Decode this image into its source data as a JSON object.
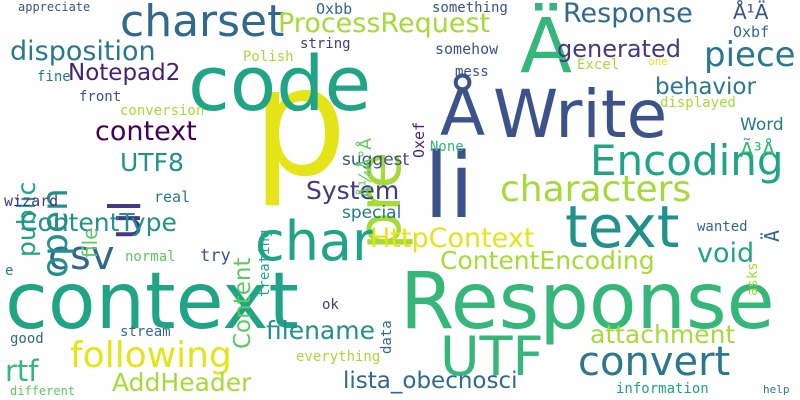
{
  "palette": {
    "yellow": "#e5e419",
    "lime": "#a5db36",
    "green": "#5ec962",
    "teal_green": "#35b779",
    "emerald": "#20a486",
    "teal": "#21918c",
    "blue_teal": "#2a788e",
    "blue": "#31688e",
    "indigo": "#3b528b",
    "violet": "#443983",
    "dark_violet": "#481f70",
    "black_violet": "#440154"
  },
  "words": [
    {
      "text": "Response",
      "color": "#35b779"
    },
    {
      "text": "context",
      "color": "#20a486"
    },
    {
      "text": "p",
      "color": "#e5e419"
    },
    {
      "text": "code",
      "color": "#20a486"
    },
    {
      "text": "Write",
      "color": "#3b528b"
    },
    {
      "text": "li",
      "color": "#3b528b"
    },
    {
      "text": "Å",
      "color": "#3b528b"
    },
    {
      "text": "Ä",
      "color": "#35b779"
    },
    {
      "text": "pre",
      "color": "#a5db36"
    },
    {
      "text": "char",
      "color": "#20a486"
    },
    {
      "text": "text",
      "color": "#21918c"
    },
    {
      "text": "UTF",
      "color": "#35b779"
    },
    {
      "text": "charset",
      "color": "#31688e"
    },
    {
      "text": "Encoding",
      "color": "#20a486"
    },
    {
      "text": "characters",
      "color": "#a5db36"
    },
    {
      "text": "following",
      "color": "#e5e419"
    },
    {
      "text": "convert",
      "color": "#2a788e"
    },
    {
      "text": "csv",
      "color": "#31688e"
    },
    {
      "text": "open",
      "color": "#21918c"
    },
    {
      "text": "ul",
      "color": "#443983"
    },
    {
      "text": "ProcessRequest",
      "color": "#a5db36"
    },
    {
      "text": "Response",
      "color": "#31688e"
    },
    {
      "text": "disposition",
      "color": "#2a788e"
    },
    {
      "text": "generated",
      "color": "#443983"
    },
    {
      "text": "piece",
      "color": "#2a788e"
    },
    {
      "text": "Notepad2",
      "color": "#481f70"
    },
    {
      "text": "context",
      "color": "#440154"
    },
    {
      "text": "behavior",
      "color": "#2a788e"
    },
    {
      "text": "public",
      "color": "#20a486"
    },
    {
      "text": "UTF8",
      "color": "#21918c"
    },
    {
      "text": "System",
      "color": "#443983"
    },
    {
      "text": "ContentType",
      "color": "#21918c"
    },
    {
      "text": "HttpContext",
      "color": "#e5e419"
    },
    {
      "text": "ContentEncoding",
      "color": "#a5db36"
    },
    {
      "text": "void",
      "color": "#20a486"
    },
    {
      "text": "attachment",
      "color": "#a5db36"
    },
    {
      "text": "filename",
      "color": "#21918c"
    },
    {
      "text": "AddHeader",
      "color": "#a5db36"
    },
    {
      "text": "lista_obecnosci",
      "color": "#31688e"
    },
    {
      "text": "rtf",
      "color": "#35b779"
    },
    {
      "text": "Content",
      "color": "#5ec962"
    },
    {
      "text": "file",
      "color": "#5ec962"
    },
    {
      "text": "special",
      "color": "#2a788e"
    },
    {
      "text": "Word",
      "color": "#2a788e"
    },
    {
      "text": "Ã³Å",
      "color": "#35b779"
    },
    {
      "text": "suggest",
      "color": "#3b528b"
    },
    {
      "text": "Å¼Å°Å",
      "color": "#5ec962"
    },
    {
      "text": "Å¹Ä",
      "color": "#3b528b"
    },
    {
      "text": "Oxbf",
      "color": "#31688e"
    },
    {
      "text": "Oxbb",
      "color": "#31688e"
    },
    {
      "text": "Oxef",
      "color": "#481f70"
    },
    {
      "text": "appreciate",
      "color": "#3b528b"
    },
    {
      "text": "something",
      "color": "#3b528b"
    },
    {
      "text": "string",
      "color": "#443983"
    },
    {
      "text": "somehow",
      "color": "#3b528b"
    },
    {
      "text": "Polish",
      "color": "#a5db36"
    },
    {
      "text": "fine",
      "color": "#2a788e"
    },
    {
      "text": "mess",
      "color": "#3b528b"
    },
    {
      "text": "Excel",
      "color": "#a5db36"
    },
    {
      "text": "one",
      "color": "#e5e419"
    },
    {
      "text": "front",
      "color": "#3b528b"
    },
    {
      "text": "conversion",
      "color": "#a5db36"
    },
    {
      "text": "displayed",
      "color": "#a5db36"
    },
    {
      "text": "None",
      "color": "#35b779"
    },
    {
      "text": "treating",
      "color": "#20a486"
    },
    {
      "text": "wizard",
      "color": "#443983"
    },
    {
      "text": "real",
      "color": "#2a788e"
    },
    {
      "text": "try",
      "color": "#3b528b"
    },
    {
      "text": "normal",
      "color": "#5ec962"
    },
    {
      "text": "wanted",
      "color": "#31688e"
    },
    {
      "text": "asks",
      "color": "#a5db36"
    },
    {
      "text": "Ä",
      "color": "#31688e"
    },
    {
      "text": "e",
      "color": "#2a788e"
    },
    {
      "text": "ok",
      "color": "#443983"
    },
    {
      "text": "data",
      "color": "#31688e"
    },
    {
      "text": "stream",
      "color": "#31688e"
    },
    {
      "text": "good",
      "color": "#31688e"
    },
    {
      "text": "everything",
      "color": "#a5db36"
    },
    {
      "text": "different",
      "color": "#5ec962"
    },
    {
      "text": "information",
      "color": "#20a486"
    },
    {
      "text": "help",
      "color": "#2a788e"
    }
  ]
}
